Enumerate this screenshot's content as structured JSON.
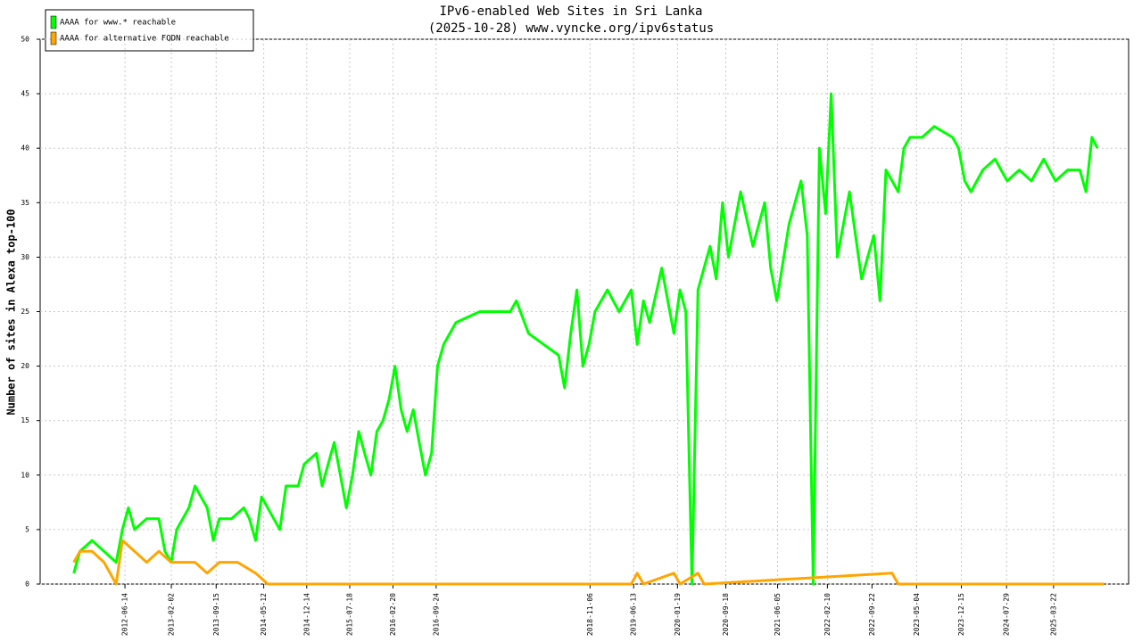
{
  "chart_data": {
    "type": "line",
    "title": "IPv6-enabled Web Sites in Sri Lanka",
    "subtitle": "(2025-10-28) www.vyncke.org/ipv6status",
    "y_label": "Number of sites in Alexa top-100",
    "xlim": [
      "2011-04-15",
      "2026-04-03"
    ],
    "xticks": [
      "2012-06-14",
      "2013-02-02",
      "2013-09-15",
      "2014-05-12",
      "2014-12-14",
      "2015-07-18",
      "2016-02-20",
      "2016-09-24",
      "2018-11-06",
      "2019-06-13",
      "2020-01-19",
      "2020-09-18",
      "2021-06-05",
      "2022-02-10",
      "2022-09-22",
      "2023-05-04",
      "2023-12-15",
      "2024-07-29",
      "2025-03-22"
    ],
    "ylim": [
      0,
      50
    ],
    "yticks": [
      0,
      5,
      10,
      15,
      20,
      25,
      30,
      35,
      40,
      45,
      50
    ],
    "grid": true,
    "legend": "upper left",
    "series": [
      {
        "name": "AAAA for www.* reachable",
        "color": "#00ff00",
        "x": [
          "2011-10-01",
          "2011-11-01",
          "2012-01-01",
          "2012-03-01",
          "2012-05-01",
          "2012-06-01",
          "2012-07-01",
          "2012-08-01",
          "2012-10-01",
          "2012-12-01",
          "2013-01-01",
          "2013-02-01",
          "2013-03-01",
          "2013-05-01",
          "2013-06-01",
          "2013-07-01",
          "2013-08-01",
          "2013-09-01",
          "2013-10-01",
          "2013-12-01",
          "2014-02-01",
          "2014-03-01",
          "2014-04-01",
          "2014-05-01",
          "2014-07-01",
          "2014-08-01",
          "2014-09-01",
          "2014-11-01",
          "2014-12-01",
          "2015-02-01",
          "2015-03-01",
          "2015-05-01",
          "2015-06-01",
          "2015-07-01",
          "2015-08-01",
          "2015-09-01",
          "2015-10-01",
          "2015-11-01",
          "2015-12-01",
          "2016-01-01",
          "2016-02-01",
          "2016-03-01",
          "2016-04-01",
          "2016-05-01",
          "2016-06-01",
          "2016-07-01",
          "2016-08-01",
          "2016-09-01",
          "2016-10-01",
          "2016-11-01",
          "2017-01-01",
          "2017-05-01",
          "2017-10-01",
          "2017-11-01",
          "2018-01-01",
          "2018-06-01",
          "2018-07-01",
          "2018-08-01",
          "2018-09-01",
          "2018-10-01",
          "2018-11-01",
          "2018-12-01",
          "2019-02-01",
          "2019-04-01",
          "2019-06-01",
          "2019-07-01",
          "2019-08-01",
          "2019-09-01",
          "2019-11-01",
          "2020-01-01",
          "2020-02-01",
          "2020-03-01",
          "2020-04-01",
          "2020-05-01",
          "2020-07-01",
          "2020-08-01",
          "2020-09-01",
          "2020-10-01",
          "2020-12-01",
          "2021-02-01",
          "2021-04-01",
          "2021-05-01",
          "2021-06-01",
          "2021-08-01",
          "2021-10-01",
          "2021-11-01",
          "2021-12-01",
          "2022-01-01",
          "2022-02-01",
          "2022-03-01",
          "2022-04-01",
          "2022-06-01",
          "2022-08-01",
          "2022-10-01",
          "2022-11-01",
          "2022-12-01",
          "2023-02-01",
          "2023-03-01",
          "2023-04-01",
          "2023-06-01",
          "2023-08-01",
          "2023-11-01",
          "2023-12-01",
          "2024-01-01",
          "2024-02-01",
          "2024-04-01",
          "2024-06-01",
          "2024-08-01",
          "2024-10-01",
          "2024-12-01",
          "2025-02-01",
          "2025-04-01",
          "2025-06-01",
          "2025-08-01",
          "2025-09-01",
          "2025-10-01",
          "2025-10-28"
        ],
        "values": [
          1,
          3,
          4,
          3,
          2,
          5,
          7,
          5,
          6,
          6,
          3,
          2,
          5,
          7,
          9,
          8,
          7,
          4,
          6,
          6,
          7,
          6,
          4,
          8,
          6,
          5,
          9,
          9,
          11,
          12,
          9,
          13,
          10,
          7,
          10,
          14,
          12,
          10,
          14,
          15,
          17,
          20,
          16,
          14,
          16,
          13,
          10,
          12,
          20,
          22,
          24,
          25,
          25,
          26,
          23,
          21,
          18,
          23,
          27,
          20,
          22,
          25,
          27,
          25,
          27,
          22,
          26,
          24,
          29,
          23,
          27,
          25,
          0,
          27,
          31,
          28,
          35,
          30,
          36,
          31,
          35,
          29,
          26,
          33,
          37,
          32,
          0,
          40,
          34,
          45,
          30,
          36,
          28,
          32,
          26,
          38,
          36,
          40,
          41,
          41,
          42,
          41,
          40,
          37,
          36,
          38,
          39,
          37,
          38,
          37,
          39,
          37,
          38,
          38,
          36,
          41,
          40
        ]
      },
      {
        "name": "AAAA for alternative FQDN reachable",
        "color": "#ffa500",
        "x": [
          "2011-10-01",
          "2011-11-01",
          "2012-01-01",
          "2012-03-01",
          "2012-05-01",
          "2012-06-01",
          "2012-08-01",
          "2012-10-01",
          "2012-12-01",
          "2013-02-01",
          "2013-06-01",
          "2013-08-01",
          "2013-10-01",
          "2013-12-01",
          "2014-01-01",
          "2014-04-01",
          "2014-06-01",
          "2019-06-01",
          "2019-07-01",
          "2019-08-01",
          "2020-01-01",
          "2020-02-01",
          "2020-05-01",
          "2020-06-01",
          "2023-01-01",
          "2023-02-01",
          "2025-12-01"
        ],
        "values": [
          2,
          3,
          3,
          2,
          0,
          4,
          3,
          2,
          3,
          2,
          2,
          1,
          2,
          2,
          2,
          1,
          0,
          0,
          1,
          0,
          1,
          0,
          1,
          0,
          1,
          0,
          0
        ]
      }
    ]
  }
}
